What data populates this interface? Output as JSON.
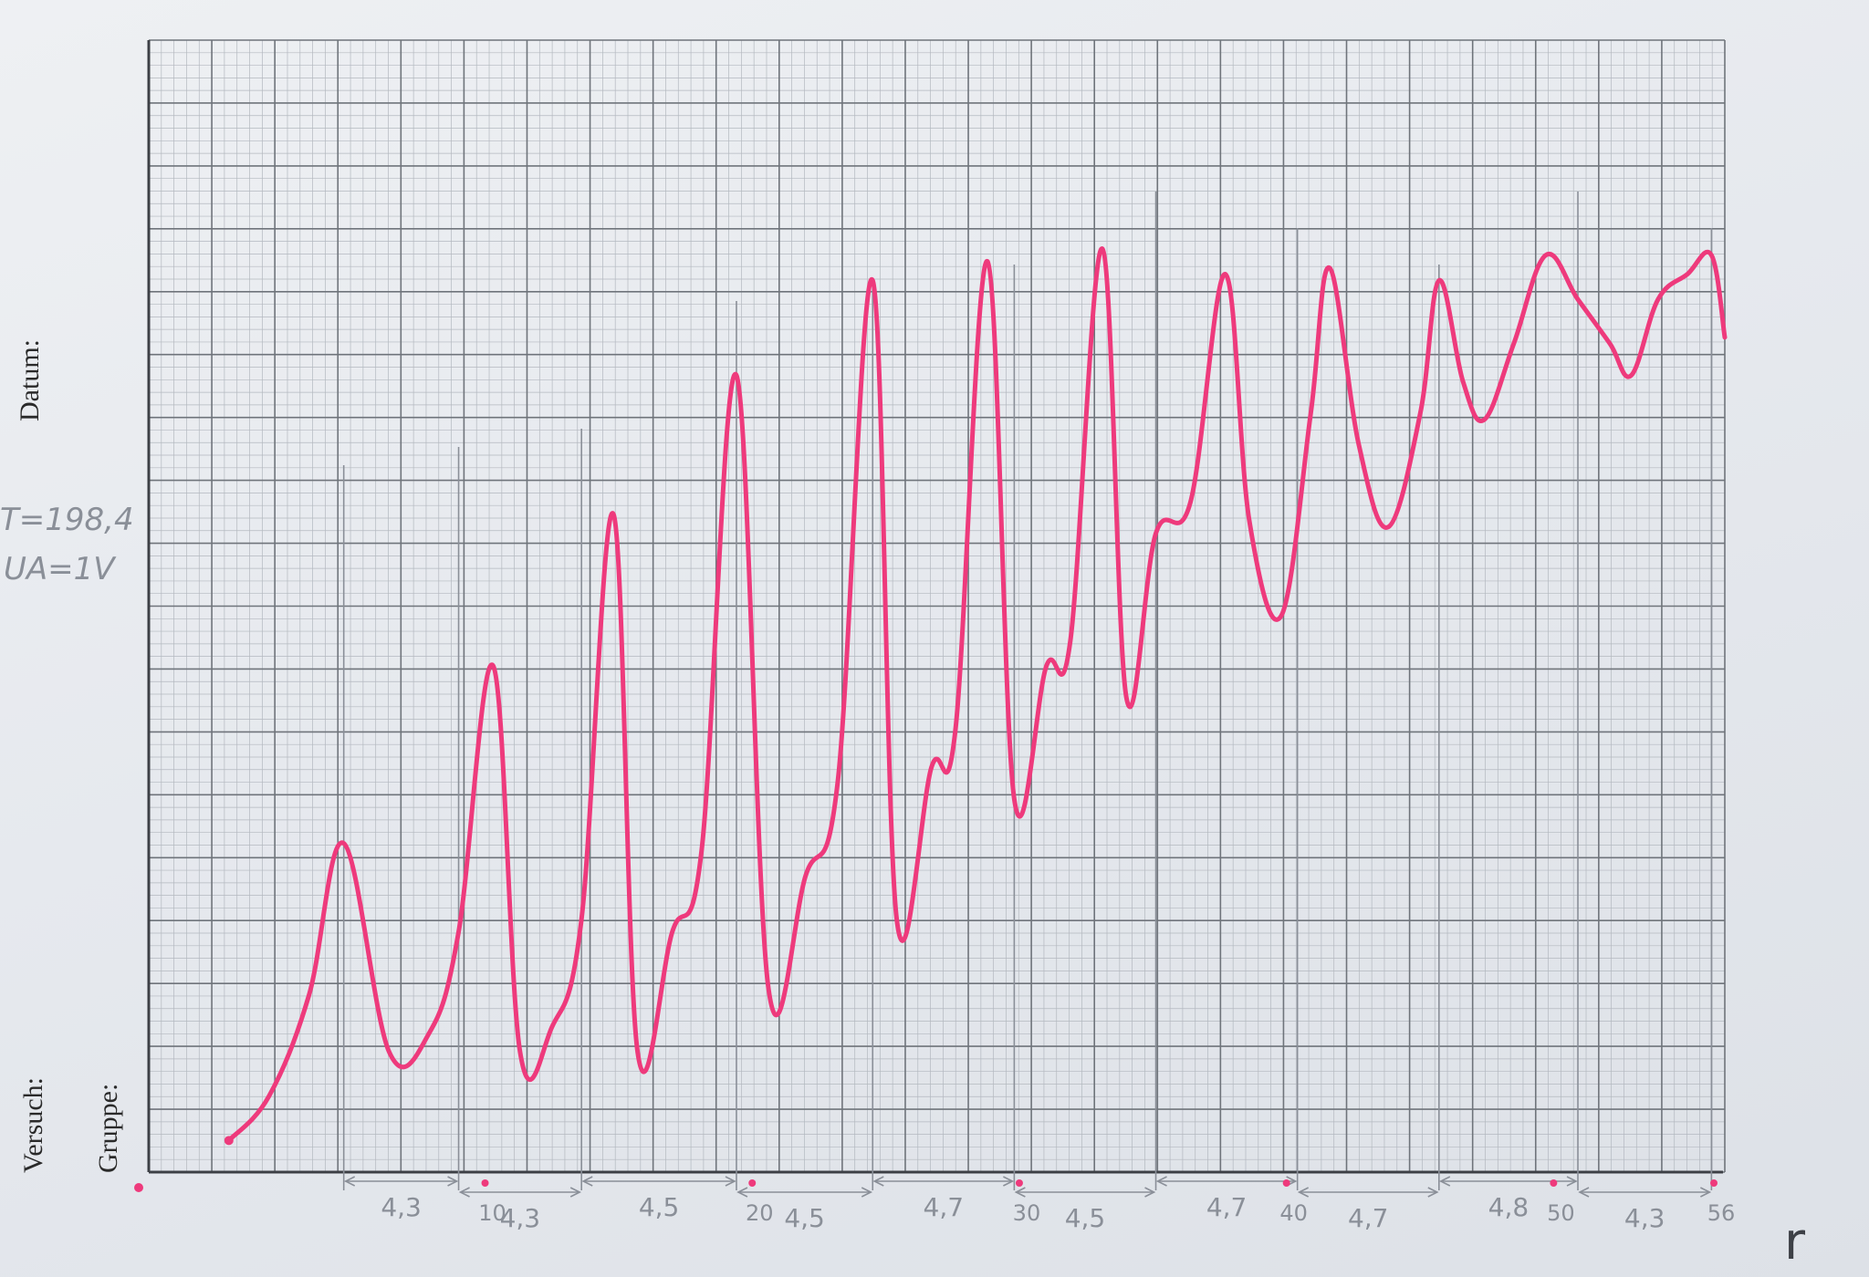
{
  "sheet": {
    "datum_label": "Datum:",
    "versuch_label": "Versuch:",
    "gruppe_label": "Gruppe:",
    "note_temperature": "T=198,4",
    "note_voltage": "UA=1V"
  },
  "colors": {
    "curve": "#ee3a7c",
    "grid_major": "#6f747b",
    "grid_minor": "#b3b8bf",
    "pencil": "#8a8f98"
  },
  "chart_data": {
    "type": "line",
    "title": "",
    "xlabel": "",
    "ylabel": "",
    "series": [
      {
        "name": "",
        "x": [
          0,
          1.5,
          3,
          4.3,
          6,
          7.5,
          8.6,
          9.9,
          10.9,
          12.1,
          13.2,
          14.4,
          15.3,
          16.6,
          17.7,
          19.0,
          20.2,
          21.6,
          22.8,
          24.1,
          25.0,
          26.3,
          27.2,
          28.4,
          29.4,
          30.6,
          31.5,
          32.7,
          33.6,
          34.7,
          36.0,
          37.3,
          38.2,
          39.4,
          40.5,
          41.2,
          42.3,
          43.4,
          44.6,
          45.3,
          46.2,
          47.0,
          48.1,
          49.3,
          50.5,
          51.7,
          52.5,
          53.5,
          54.6,
          55.5,
          56.0
        ],
        "y": [
          0.5,
          1.2,
          2.8,
          5.2,
          1.9,
          2.2,
          3.8,
          8.0,
          1.9,
          2.3,
          4.0,
          10.4,
          1.9,
          3.8,
          5.1,
          12.6,
          2.9,
          4.7,
          6.2,
          14.1,
          4.0,
          6.4,
          7.0,
          14.4,
          5.9,
          8.0,
          8.4,
          14.6,
          7.5,
          10.1,
          10.6,
          14.2,
          10.3,
          8.8,
          12.0,
          14.3,
          11.5,
          10.2,
          12.0,
          14.1,
          12.5,
          11.9,
          13.1,
          14.5,
          13.8,
          13.1,
          12.6,
          13.8,
          14.2,
          14.5,
          13.2
        ]
      }
    ],
    "xlim": [
      -3,
      56
    ],
    "ylim": [
      0,
      17.9
    ],
    "grid": true,
    "x_tick_labels": [
      {
        "x": 10,
        "label": "10"
      },
      {
        "x": 20,
        "label": "20"
      },
      {
        "x": 30,
        "label": "30"
      },
      {
        "x": 40,
        "label": "40"
      },
      {
        "x": 50,
        "label": "50"
      },
      {
        "x": 56,
        "label": "56"
      }
    ],
    "peak_spacings": [
      {
        "from": 4.3,
        "to": 8.6,
        "label": "4,3"
      },
      {
        "from": 8.6,
        "to": 13.2,
        "label": "4,3"
      },
      {
        "from": 13.2,
        "to": 19.0,
        "label": "4,5"
      },
      {
        "from": 19.0,
        "to": 24.1,
        "label": "4,5"
      },
      {
        "from": 24.1,
        "to": 29.4,
        "label": "4,7"
      },
      {
        "from": 29.4,
        "to": 34.7,
        "label": "4,5"
      },
      {
        "from": 34.7,
        "to": 40.0,
        "label": "4,7"
      },
      {
        "from": 40.0,
        "to": 45.3,
        "label": "4,7"
      },
      {
        "from": 45.3,
        "to": 50.5,
        "label": "4,8"
      },
      {
        "from": 50.5,
        "to": 55.5,
        "label": "4,3"
      }
    ],
    "peak_markers": [
      4.3,
      8.6,
      13.2,
      19.0,
      24.1,
      29.4,
      34.7,
      40.0,
      45.3,
      50.5,
      55.5
    ],
    "corner_mark": "r"
  }
}
